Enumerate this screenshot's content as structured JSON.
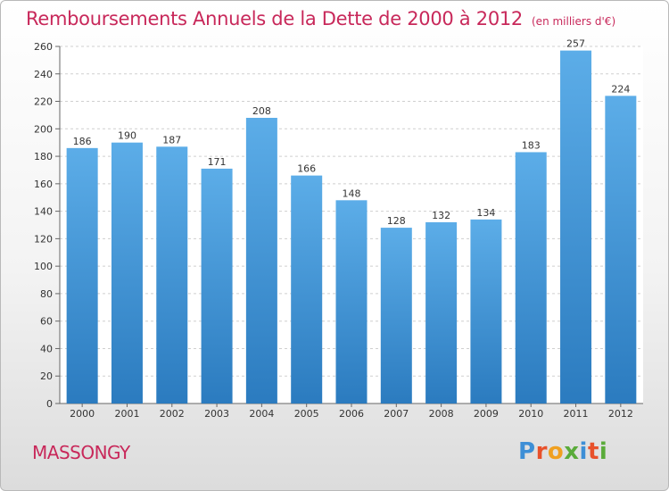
{
  "page": {
    "title": "Remboursements Annuels de la Dette de 2000 à 2012",
    "subtitle": "(en milliers d'€)",
    "place": "MASSONGY",
    "logo": "Proxiti"
  },
  "chart_data": {
    "type": "bar",
    "title": "Remboursements Annuels de la Dette de 2000 à 2012",
    "subtitle": "(en milliers d'€)",
    "categories": [
      "2000",
      "2001",
      "2002",
      "2003",
      "2004",
      "2005",
      "2006",
      "2007",
      "2008",
      "2009",
      "2010",
      "2011",
      "2012"
    ],
    "values": [
      186,
      190,
      187,
      171,
      208,
      166,
      148,
      128,
      132,
      134,
      183,
      257,
      224
    ],
    "data_labels": [
      "186",
      "190",
      "187",
      "171",
      "208",
      "166",
      "148",
      "128",
      "132",
      "134",
      "183",
      "257",
      "224"
    ],
    "ylim": [
      0,
      260
    ],
    "yticks": [
      0,
      20,
      40,
      60,
      80,
      100,
      120,
      140,
      160,
      180,
      200,
      220,
      240,
      260
    ],
    "grid": "horizontal-dashed",
    "xlabel": "",
    "ylabel": "",
    "colors": {
      "bar_top": "#5cade8",
      "bar_bottom": "#2b7bbf",
      "grid": "#cfcfcf",
      "title": "#c8285a"
    }
  }
}
